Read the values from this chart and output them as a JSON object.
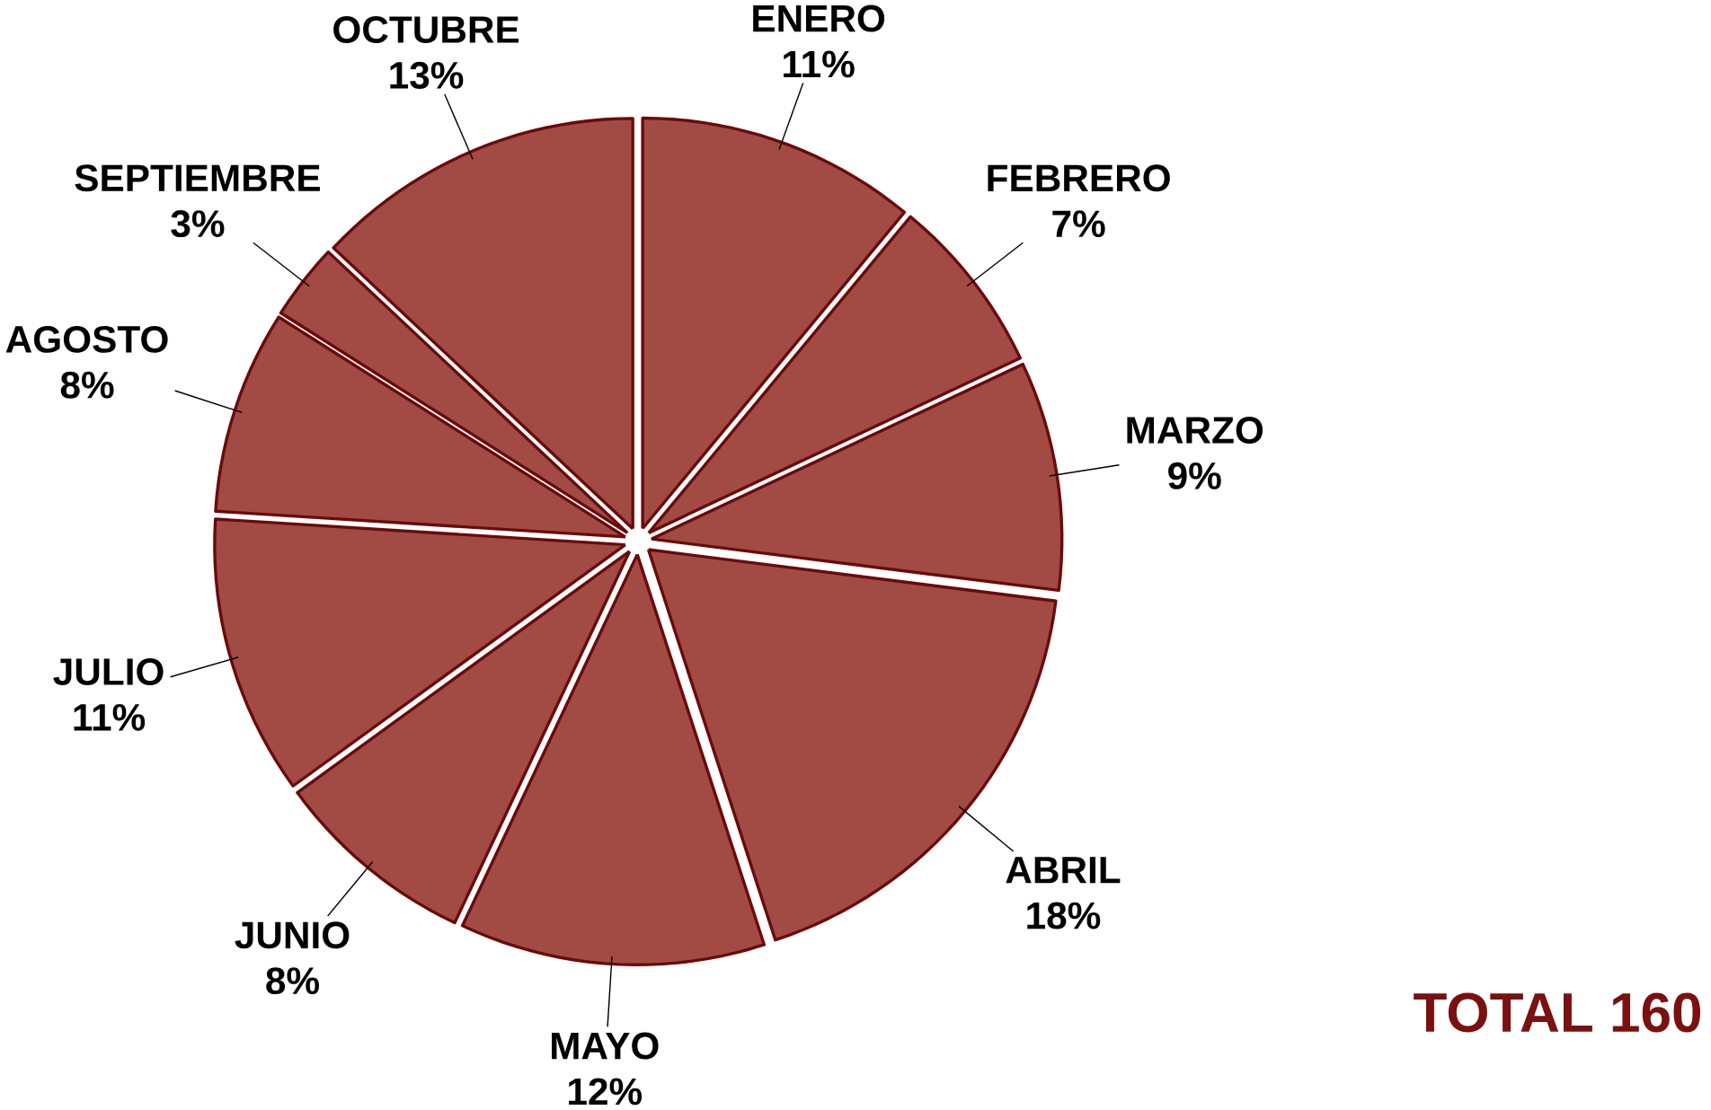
{
  "chart_data": {
    "type": "pie",
    "categories": [
      "ENERO",
      "FEBRERO",
      "MARZO",
      "ABRIL",
      "MAYO",
      "JUNIO",
      "JULIO",
      "AGOSTO",
      "SEPTIEMBRE",
      "OCTUBRE"
    ],
    "values": [
      11,
      7,
      9,
      18,
      12,
      8,
      11,
      8,
      3,
      13
    ],
    "value_labels": [
      "11%",
      "7%",
      "9%",
      "18%",
      "12%",
      "8%",
      "11%",
      "8%",
      "3%",
      "13%"
    ],
    "color": "#a24a44",
    "annotations": [
      "TOTAL 160"
    ]
  }
}
